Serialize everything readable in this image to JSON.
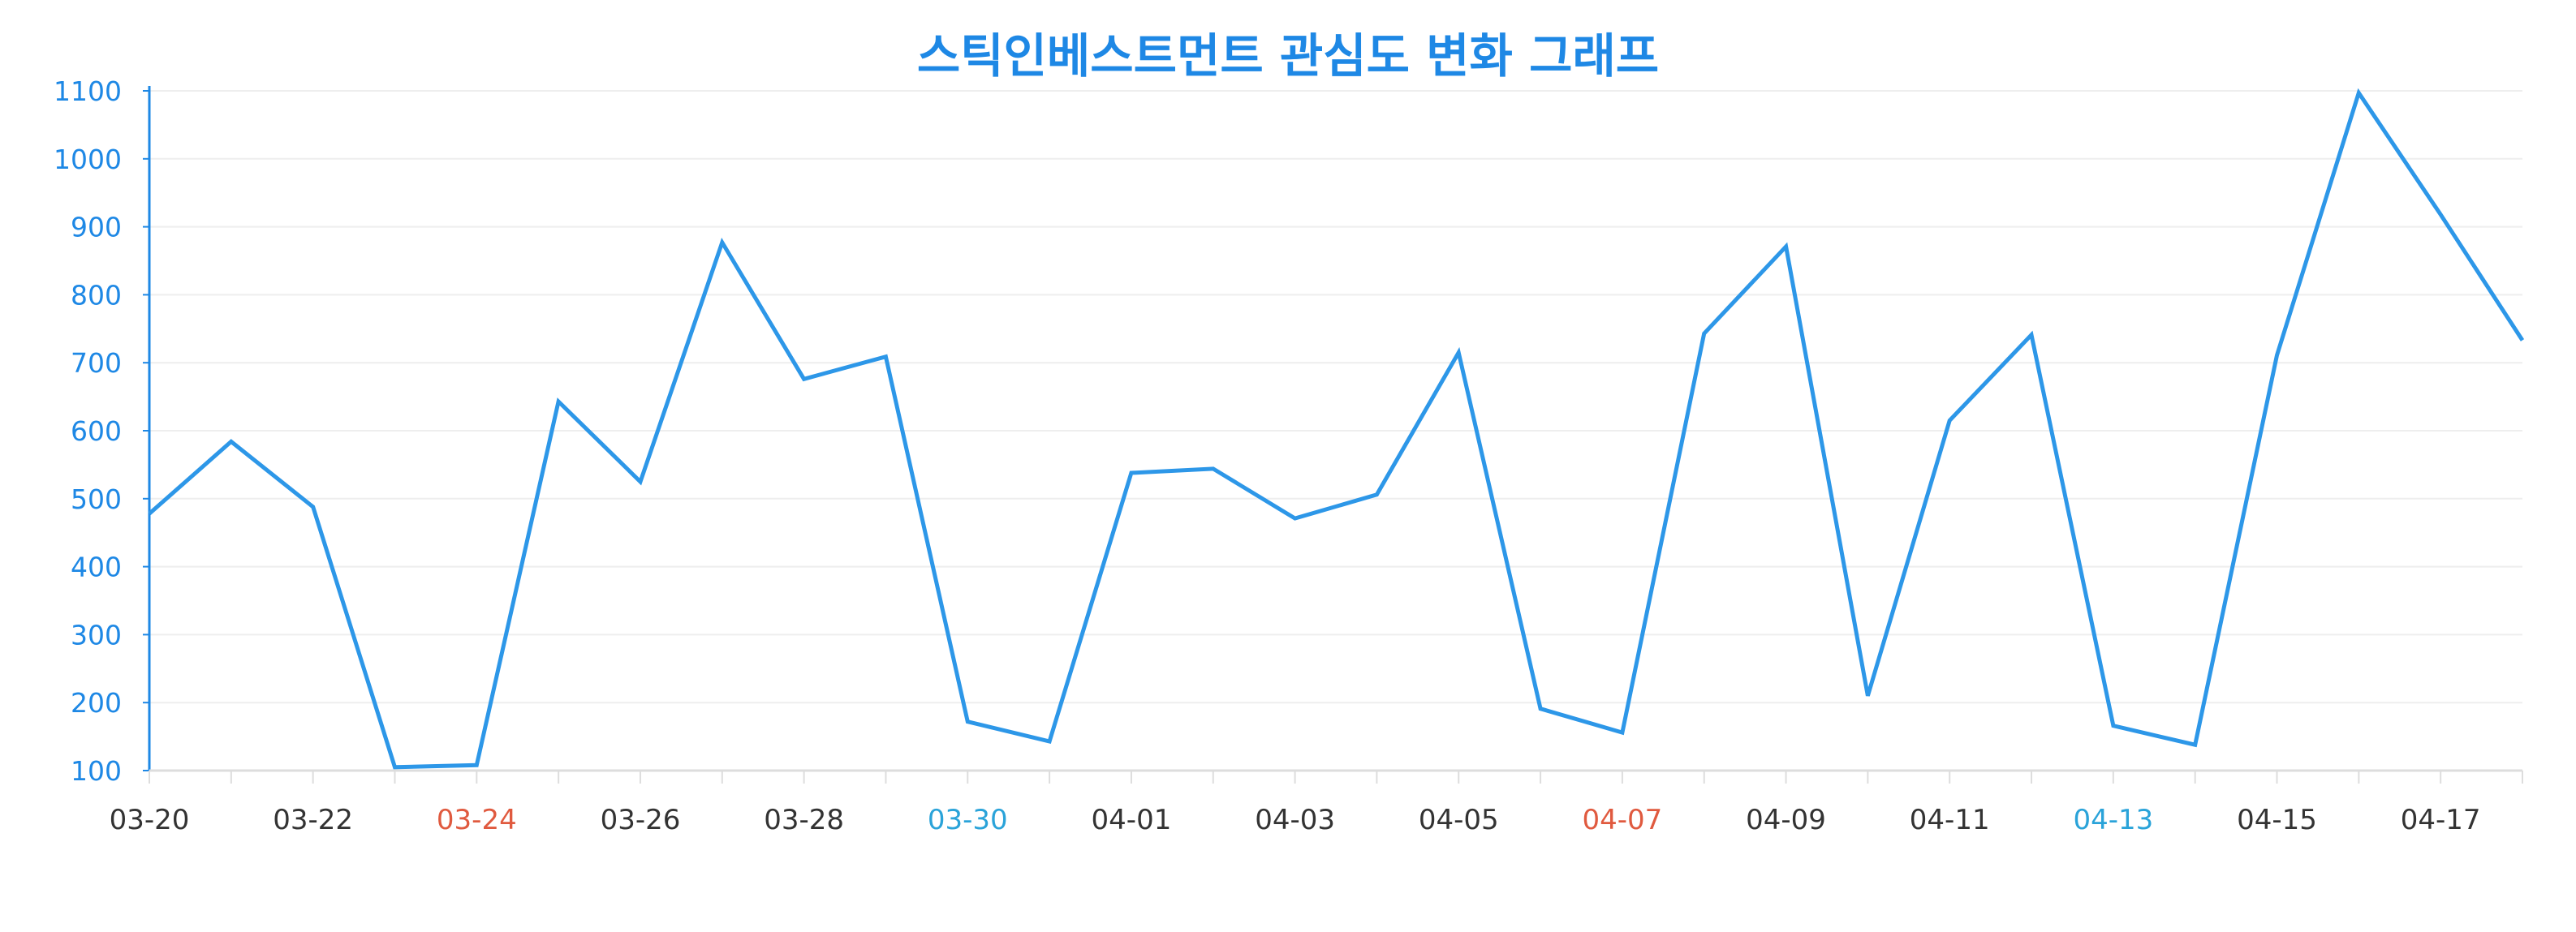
{
  "chart_data": {
    "type": "line",
    "title": "스틱인베스트먼트 관심도 변화 그래프",
    "xlabel": "",
    "ylabel": "",
    "x": [
      "03-20",
      "03-21",
      "03-22",
      "03-23",
      "03-24",
      "03-25",
      "03-26",
      "03-27",
      "03-28",
      "03-29",
      "03-30",
      "03-31",
      "04-01",
      "04-02",
      "04-03",
      "04-04",
      "04-05",
      "04-06",
      "04-07",
      "04-08",
      "04-09",
      "04-10",
      "04-11",
      "04-12",
      "04-13",
      "04-14",
      "04-15",
      "04-16",
      "04-17",
      "04-18"
    ],
    "x_tick_labels": [
      "03-20",
      "03-22",
      "03-24",
      "03-26",
      "03-28",
      "03-30",
      "04-01",
      "04-03",
      "04-05",
      "04-07",
      "04-09",
      "04-11",
      "04-13",
      "04-15",
      "04-17"
    ],
    "x_tick_colors": [
      "#333333",
      "#333333",
      "#e05a3f",
      "#333333",
      "#333333",
      "#2aa3d9",
      "#333333",
      "#333333",
      "#333333",
      "#e05a3f",
      "#333333",
      "#333333",
      "#2aa3d9",
      "#333333",
      "#333333"
    ],
    "y_ticks": [
      100,
      200,
      300,
      400,
      500,
      600,
      700,
      800,
      900,
      1000,
      1100
    ],
    "ylim": [
      100,
      1100
    ],
    "grid": true,
    "series": [
      {
        "values": [
          478,
          584,
          488,
          105,
          108,
          643,
          525,
          877,
          676,
          709,
          172,
          143,
          538,
          544,
          471,
          506,
          715,
          191,
          156,
          743,
          871,
          210,
          615,
          741,
          166,
          138,
          711,
          1097,
          918,
          733
        ]
      }
    ]
  },
  "colors": {
    "title": "#1e88e5",
    "line": "#2d97e8",
    "y_axis": "#1e88e5",
    "y_tick_label": "#1e88e5",
    "x_axis": "#dddddd",
    "grid": "#eeeeee"
  }
}
